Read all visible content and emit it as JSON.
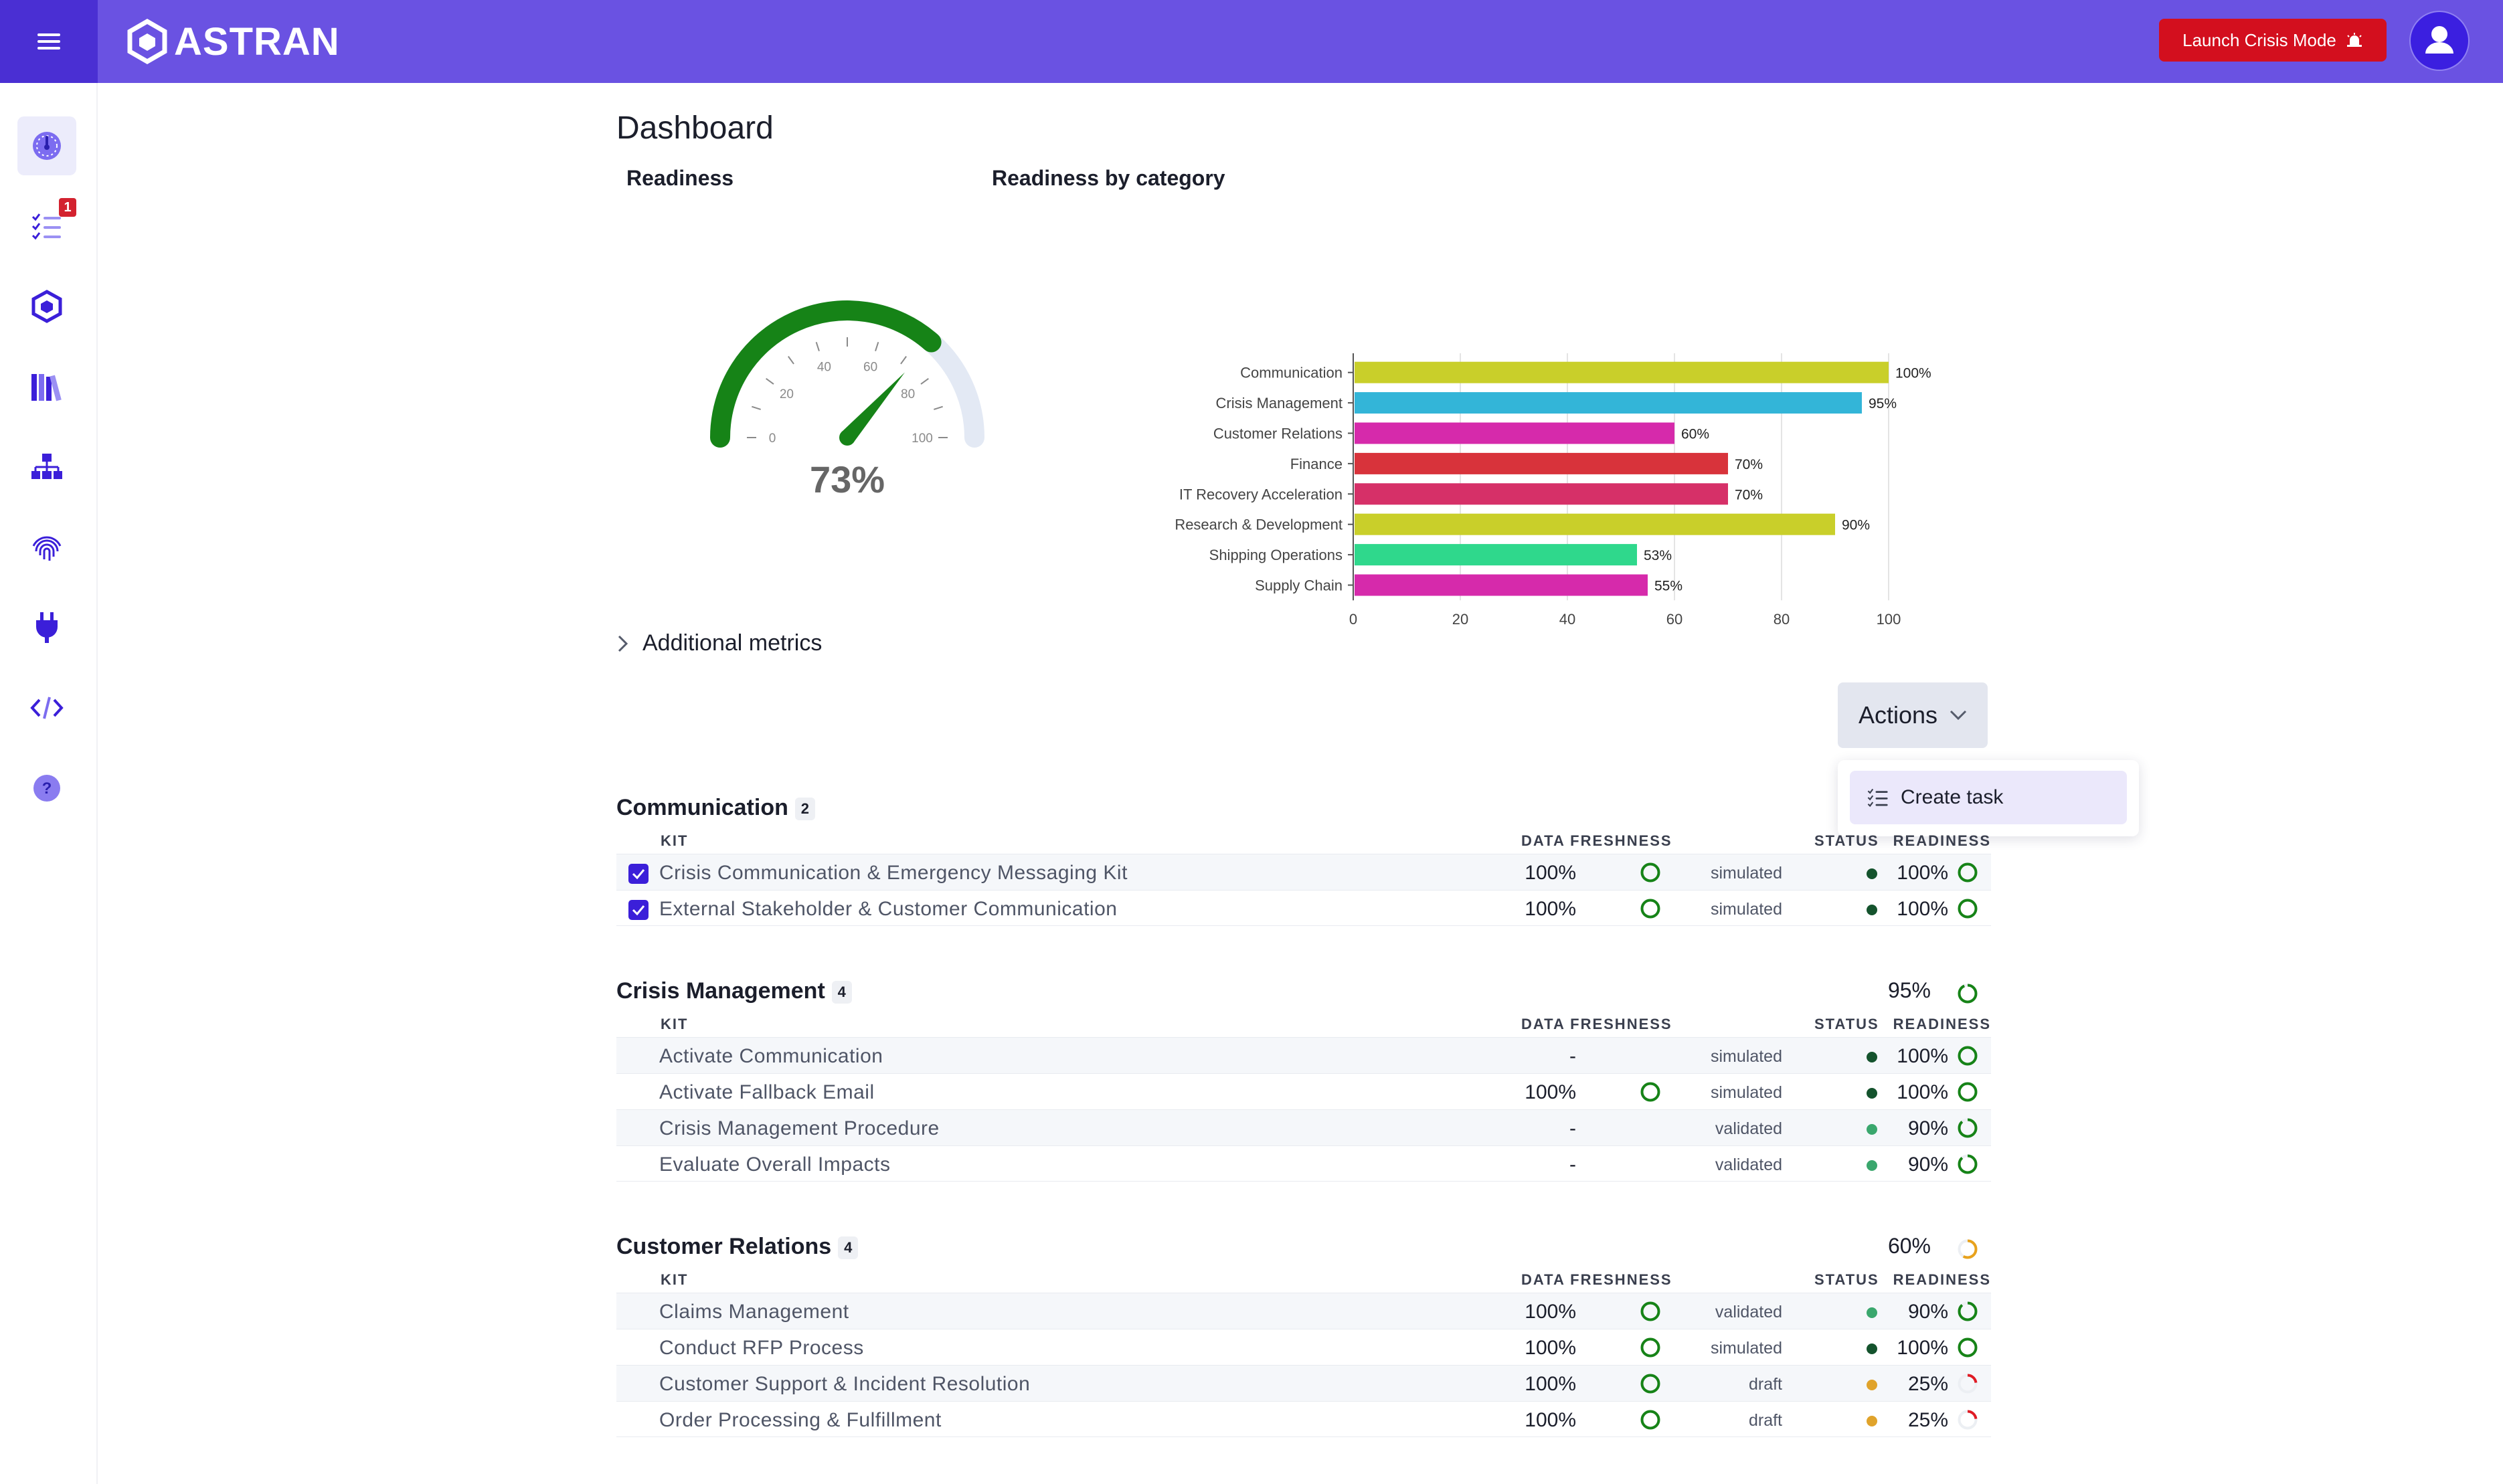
{
  "header": {
    "brand": "ASTRAN",
    "crisis_button": "Launch Crisis Mode",
    "colors": {
      "bar": "#6a52e2",
      "menu_bg": "#4a2fd3",
      "crisis": "#d30f1e"
    }
  },
  "sidebar": {
    "items": [
      {
        "icon": "speedometer-icon",
        "active": true
      },
      {
        "icon": "task-list-icon",
        "badge": "1"
      },
      {
        "icon": "cube-network-icon"
      },
      {
        "icon": "library-books-icon"
      },
      {
        "icon": "org-chart-icon"
      },
      {
        "icon": "fingerprint-icon"
      },
      {
        "icon": "plug-icon"
      },
      {
        "icon": "code-icon"
      },
      {
        "icon": "help-icon"
      }
    ]
  },
  "page": {
    "title": "Dashboard"
  },
  "readiness": {
    "label": "Readiness",
    "value_text": "73%",
    "value": 73,
    "tick_labels": [
      "0",
      "20",
      "40",
      "60",
      "80",
      "100"
    ]
  },
  "chart_data": {
    "type": "bar",
    "title": "Readiness by category",
    "orientation": "horizontal",
    "categories": [
      "Communication",
      "Crisis Management",
      "Customer Relations",
      "Finance",
      "IT Recovery Acceleration",
      "Research & Development",
      "Shipping Operations",
      "Supply Chain"
    ],
    "values": [
      100,
      95,
      60,
      70,
      70,
      90,
      53,
      55
    ],
    "value_labels": [
      "100%",
      "95%",
      "60%",
      "70%",
      "70%",
      "90%",
      "53%",
      "55%"
    ],
    "colors": [
      "#c9cf2a",
      "#33b5d8",
      "#d62aab",
      "#d8333b",
      "#d63068",
      "#c9cf2a",
      "#2fd88c",
      "#d62aab"
    ],
    "x_ticks": [
      "0",
      "20",
      "40",
      "60",
      "80",
      "100"
    ],
    "xlim": [
      0,
      100
    ],
    "grid": true
  },
  "additional_metrics": {
    "label": "Additional metrics"
  },
  "actions": {
    "label": "Actions",
    "menu": [
      {
        "label": "Create task",
        "icon": "task-list-icon"
      }
    ]
  },
  "columns": {
    "kit": "KIT",
    "freshness": "DATA FRESHNESS",
    "status": "STATUS",
    "readiness": "READINESS"
  },
  "groups": [
    {
      "name": "Communication",
      "count": "2",
      "pct_text": "",
      "pct": null,
      "rows": [
        {
          "kit": "Crisis Communication & Emergency Messaging Kit",
          "checked": true,
          "freshness": "100%",
          "fresh_ring": true,
          "status": "simulated",
          "status_color": "#14532d",
          "readiness": "100%",
          "readiness_value": 100
        },
        {
          "kit": "External Stakeholder & Customer Communication",
          "checked": true,
          "freshness": "100%",
          "fresh_ring": true,
          "status": "simulated",
          "status_color": "#14532d",
          "readiness": "100%",
          "readiness_value": 100
        }
      ]
    },
    {
      "name": "Crisis Management",
      "count": "4",
      "pct_text": "95%",
      "pct": 95,
      "rows": [
        {
          "kit": "Activate Communication",
          "checked": false,
          "freshness": "-",
          "fresh_ring": false,
          "status": "simulated",
          "status_color": "#14532d",
          "readiness": "100%",
          "readiness_value": 100
        },
        {
          "kit": "Activate Fallback Email",
          "checked": false,
          "freshness": "100%",
          "fresh_ring": true,
          "status": "simulated",
          "status_color": "#14532d",
          "readiness": "100%",
          "readiness_value": 100
        },
        {
          "kit": "Crisis Management Procedure",
          "checked": false,
          "freshness": "-",
          "fresh_ring": false,
          "status": "validated",
          "status_color": "#3aa76d",
          "readiness": "90%",
          "readiness_value": 90
        },
        {
          "kit": "Evaluate Overall Impacts",
          "checked": false,
          "freshness": "-",
          "fresh_ring": false,
          "status": "validated",
          "status_color": "#3aa76d",
          "readiness": "90%",
          "readiness_value": 90
        }
      ]
    },
    {
      "name": "Customer Relations",
      "count": "4",
      "pct_text": "60%",
      "pct": 60,
      "rows": [
        {
          "kit": "Claims Management",
          "checked": false,
          "freshness": "100%",
          "fresh_ring": true,
          "status": "validated",
          "status_color": "#3aa76d",
          "readiness": "90%",
          "readiness_value": 90
        },
        {
          "kit": "Conduct RFP Process",
          "checked": false,
          "freshness": "100%",
          "fresh_ring": true,
          "status": "simulated",
          "status_color": "#14532d",
          "readiness": "100%",
          "readiness_value": 100
        },
        {
          "kit": "Customer Support & Incident Resolution",
          "checked": false,
          "freshness": "100%",
          "fresh_ring": true,
          "status": "draft",
          "status_color": "#e0a32b",
          "readiness": "25%",
          "readiness_value": 25
        },
        {
          "kit": "Order Processing & Fulfillment",
          "checked": false,
          "freshness": "100%",
          "fresh_ring": true,
          "status": "draft",
          "status_color": "#e0a32b",
          "readiness": "25%",
          "readiness_value": 25
        }
      ]
    }
  ]
}
